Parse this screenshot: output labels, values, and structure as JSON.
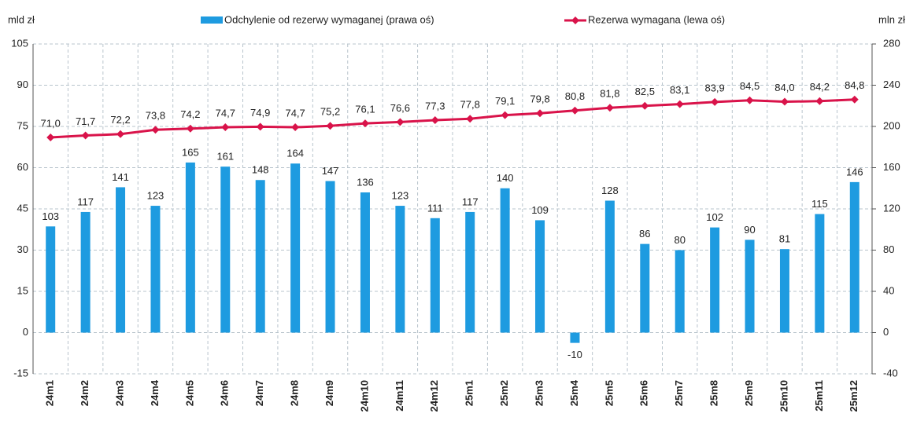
{
  "chart_data": {
    "type": "bar",
    "y_label": "mld zł",
    "y2_label": "mln zł",
    "categories": [
      "24m1",
      "24m2",
      "24m3",
      "24m4",
      "24m5",
      "24m6",
      "24m7",
      "24m8",
      "24m9",
      "24m10",
      "24m11",
      "24m12",
      "25m1",
      "25m2",
      "25m3",
      "25m4",
      "25m5",
      "25m6",
      "25m7",
      "25m8",
      "25m9",
      "25m10",
      "25m11",
      "25m12"
    ],
    "series": [
      {
        "name": "Odchylenie od rezerwy wymaganej (prawa oś)",
        "type": "bar",
        "axis": "y2",
        "color": "#1e9be0",
        "values": [
          103,
          117,
          141,
          123,
          165,
          161,
          148,
          164,
          147,
          136,
          123,
          111,
          117,
          140,
          109,
          -10,
          128,
          86,
          80,
          102,
          90,
          81,
          115,
          146
        ]
      },
      {
        "name": "Rezerwa wymagana (lewa oś)",
        "type": "line",
        "axis": "y",
        "color": "#d9134a",
        "values": [
          71.0,
          71.7,
          72.2,
          73.8,
          74.2,
          74.7,
          74.9,
          74.7,
          75.2,
          76.1,
          76.6,
          77.3,
          77.8,
          79.1,
          79.8,
          80.8,
          81.8,
          82.5,
          83.1,
          83.9,
          84.5,
          84.0,
          84.2,
          84.8
        ],
        "value_labels": [
          "71,0",
          "71,7",
          "72,2",
          "73,8",
          "74,2",
          "74,7",
          "74,9",
          "74,7",
          "75,2",
          "76,1",
          "76,6",
          "77,3",
          "77,8",
          "79,1",
          "79,8",
          "80,8",
          "81,8",
          "82,5",
          "83,1",
          "83,9",
          "84,5",
          "84,0",
          "84,2",
          "84,8"
        ]
      }
    ],
    "ylim": [
      -15,
      105
    ],
    "yticks": [
      -15,
      0,
      15,
      30,
      45,
      60,
      75,
      90,
      105
    ],
    "y2lim": [
      -40,
      280
    ],
    "y2ticks": [
      -40,
      0,
      40,
      80,
      120,
      160,
      200,
      240,
      280
    ],
    "grid": true,
    "legend": "top"
  }
}
